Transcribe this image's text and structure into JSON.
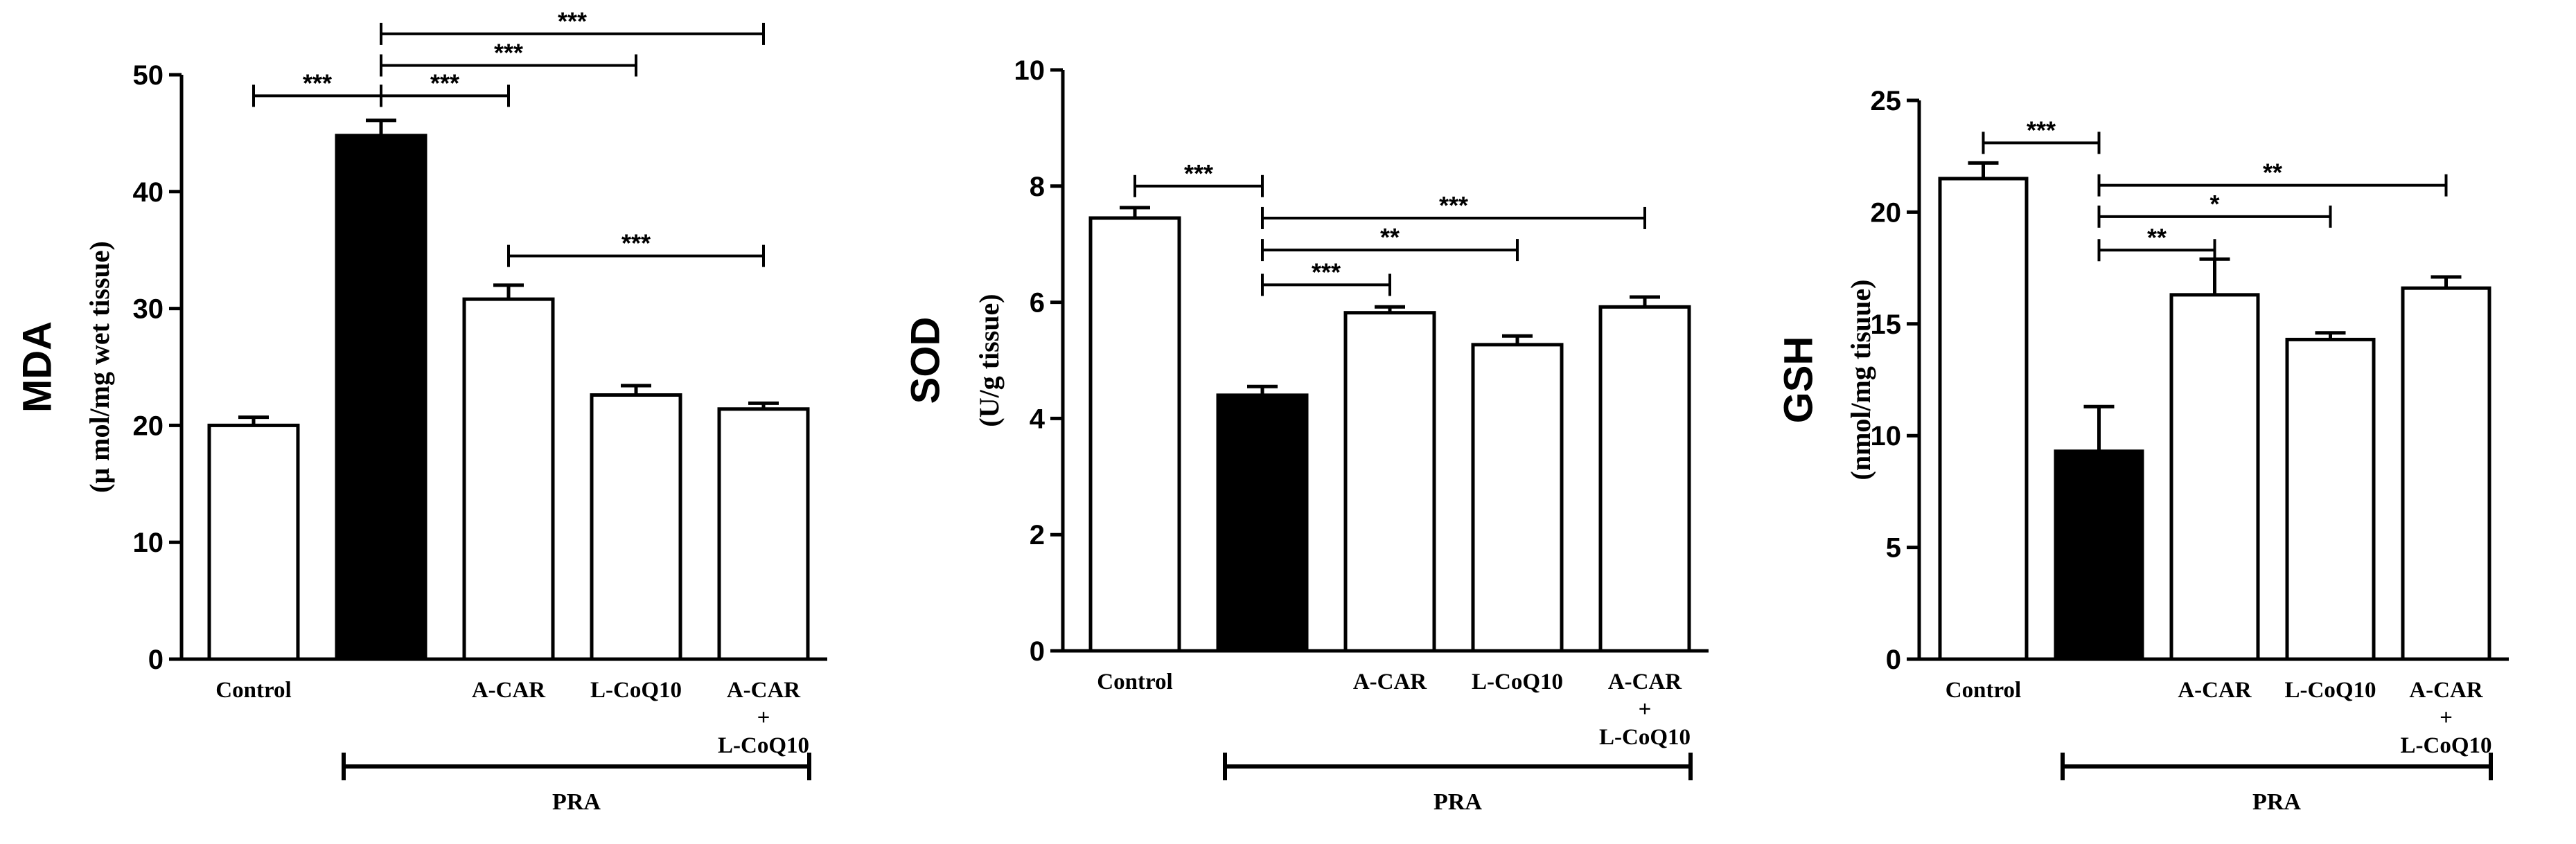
{
  "chart_data": [
    {
      "type": "bar",
      "title": "",
      "ylabel": "MDA",
      "ylabel_unit": "(μ mol/mg wet tissue)",
      "categories": [
        "Control",
        "",
        "A-CAR",
        "L-CoQ10",
        "A-CAR + L-CoQ10"
      ],
      "category_labels": [
        [
          "Control"
        ],
        [
          ""
        ],
        [
          "A-CAR"
        ],
        [
          "L-CoQ10"
        ],
        [
          "A-CAR",
          "+",
          "L-CoQ10"
        ]
      ],
      "values": [
        20.0,
        44.8,
        30.8,
        22.6,
        21.4
      ],
      "errors": [
        0.7,
        1.3,
        1.2,
        0.8,
        0.5
      ],
      "bar_fill": [
        "#ffffff",
        "#000000",
        "#ffffff",
        "#ffffff",
        "#ffffff"
      ],
      "ylim": [
        0,
        50
      ],
      "yticks": [
        "0",
        "10",
        "20",
        "30",
        "40",
        "50"
      ],
      "group_bracket": {
        "label": "PRA",
        "from": 1,
        "to": 4
      },
      "significance": [
        {
          "from": 0,
          "to": 1,
          "label": "***",
          "y": 48.2
        },
        {
          "from": 1,
          "to": 2,
          "label": "***",
          "y": 48.2
        },
        {
          "from": 1,
          "to": 3,
          "label": "***",
          "y": 50.8
        },
        {
          "from": 1,
          "to": 4,
          "label": "***",
          "y": 53.5
        },
        {
          "from": 2,
          "to": 4,
          "label": "***",
          "y": 34.5
        }
      ]
    },
    {
      "type": "bar",
      "title": "",
      "ylabel": "SOD",
      "ylabel_unit": "(U/g tissue)",
      "categories": [
        "Control",
        "",
        "A-CAR",
        "L-CoQ10",
        "A-CAR + L-CoQ10"
      ],
      "category_labels": [
        [
          "Control"
        ],
        [
          ""
        ],
        [
          "A-CAR"
        ],
        [
          "L-CoQ10"
        ],
        [
          "A-CAR",
          "+",
          "L-CoQ10"
        ]
      ],
      "values": [
        7.45,
        4.4,
        5.82,
        5.27,
        5.92
      ],
      "errors": [
        0.18,
        0.15,
        0.1,
        0.15,
        0.17
      ],
      "bar_fill": [
        "#ffffff",
        "#000000",
        "#ffffff",
        "#ffffff",
        "#ffffff"
      ],
      "ylim": [
        0,
        10
      ],
      "yticks": [
        "0",
        "2",
        "4",
        "6",
        "8",
        "10"
      ],
      "group_bracket": {
        "label": "PRA",
        "from": 1,
        "to": 4
      },
      "significance": [
        {
          "from": 0,
          "to": 1,
          "label": "***",
          "y": 8.0
        },
        {
          "from": 1,
          "to": 2,
          "label": "***",
          "y": 6.3
        },
        {
          "from": 1,
          "to": 3,
          "label": "**",
          "y": 6.9
        },
        {
          "from": 1,
          "to": 4,
          "label": "***",
          "y": 7.45
        }
      ]
    },
    {
      "type": "bar",
      "title": "",
      "ylabel": "GSH",
      "ylabel_unit": "(nmol/mg tisuue)",
      "categories": [
        "Control",
        "",
        "A-CAR",
        "L-CoQ10",
        "A-CAR + L-CoQ10"
      ],
      "category_labels": [
        [
          "Control"
        ],
        [
          ""
        ],
        [
          "A-CAR"
        ],
        [
          "L-CoQ10"
        ],
        [
          "A-CAR",
          "+",
          "L-CoQ10"
        ]
      ],
      "values": [
        21.5,
        9.3,
        16.3,
        14.3,
        16.6
      ],
      "errors": [
        0.7,
        2.0,
        1.6,
        0.3,
        0.5
      ],
      "bar_fill": [
        "#ffffff",
        "#000000",
        "#ffffff",
        "#ffffff",
        "#ffffff"
      ],
      "ylim": [
        0,
        25
      ],
      "yticks": [
        "0",
        "5",
        "10",
        "15",
        "20",
        "25"
      ],
      "group_bracket": {
        "label": "PRA",
        "from": 1,
        "to": 4
      },
      "significance": [
        {
          "from": 0,
          "to": 1,
          "label": "***",
          "y": 23.1
        },
        {
          "from": 1,
          "to": 2,
          "label": "**",
          "y": 18.3
        },
        {
          "from": 1,
          "to": 3,
          "label": "*",
          "y": 19.8
        },
        {
          "from": 1,
          "to": 4,
          "label": "**",
          "y": 21.2
        }
      ]
    }
  ]
}
